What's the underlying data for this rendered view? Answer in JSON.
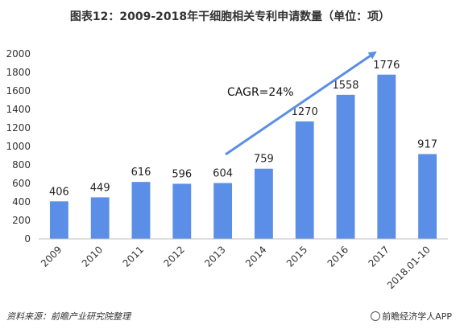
{
  "chart_data": {
    "type": "bar",
    "title": "图表12：2009-2018年干细胞相关专利申请数量（单位：项）",
    "categories": [
      "2009",
      "2010",
      "2011",
      "2012",
      "2013",
      "2014",
      "2015",
      "2016",
      "2017",
      "2018.01-10"
    ],
    "values": [
      406,
      449,
      616,
      596,
      604,
      759,
      1270,
      1558,
      1776,
      917
    ],
    "ylim": [
      0,
      2000
    ],
    "yticks": [
      0,
      200,
      400,
      600,
      800,
      1000,
      1200,
      1400,
      1600,
      1800,
      2000
    ],
    "grid": false,
    "bar_color": "#5b8ee6",
    "annotation": {
      "text": "CAGR=24%",
      "arrow_color": "#5b8ee6"
    }
  },
  "footer": {
    "source": "资料来源：前瞻产业研究院整理",
    "brand": "前瞻经济学人APP"
  }
}
